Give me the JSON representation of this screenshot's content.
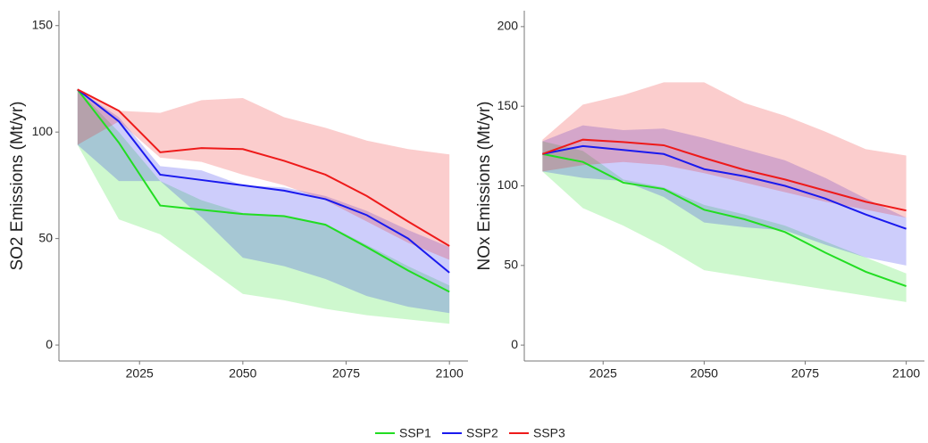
{
  "chart_data": [
    {
      "type": "line",
      "ylabel": "SO2 Emissions (Mt/yr)",
      "x": [
        2010,
        2020,
        2030,
        2040,
        2050,
        2060,
        2070,
        2080,
        2090,
        2100
      ],
      "xlim": [
        2005.5,
        2104.5
      ],
      "xticks": [
        2025,
        2050,
        2075,
        2100
      ],
      "ylim": [
        -7.5,
        157
      ],
      "yticks": [
        0,
        50,
        100,
        150
      ],
      "series": [
        {
          "name": "SSP1",
          "color": "#22dd22",
          "values": [
            120,
            95,
            65.5,
            63.5,
            61.5,
            60.5,
            56.5,
            46,
            35,
            25
          ],
          "lower": [
            94,
            59,
            52,
            38,
            24,
            21,
            17,
            14,
            12,
            10
          ],
          "upper": [
            120,
            100,
            77,
            68,
            62,
            61,
            57,
            47,
            37,
            28
          ]
        },
        {
          "name": "SSP2",
          "color": "#1a1aee",
          "values": [
            120,
            105,
            80,
            77.5,
            75,
            72.5,
            68.5,
            61,
            50,
            34
          ],
          "lower": [
            94,
            77,
            77,
            60,
            41,
            37,
            31,
            23,
            18,
            15
          ],
          "upper": [
            120,
            107,
            84,
            82,
            75,
            74,
            70,
            63,
            54,
            46
          ]
        },
        {
          "name": "SSP3",
          "color": "#ee1a1a",
          "values": [
            120,
            110,
            90.5,
            92.5,
            92,
            86.5,
            80,
            70,
            58,
            46.5
          ],
          "lower": [
            94,
            105,
            88,
            86,
            80,
            75,
            68,
            58,
            48,
            40
          ],
          "upper": [
            120,
            110,
            109,
            115,
            116,
            107,
            102,
            96,
            92,
            89.5
          ]
        }
      ]
    },
    {
      "type": "line",
      "ylabel": "NOx Emissions (Mt/yr)",
      "x": [
        2010,
        2020,
        2030,
        2040,
        2050,
        2060,
        2070,
        2080,
        2090,
        2100
      ],
      "xlim": [
        2005.5,
        2104.5
      ],
      "xticks": [
        2025,
        2050,
        2075,
        2100
      ],
      "ylim": [
        -10,
        210
      ],
      "yticks": [
        0,
        50,
        100,
        150,
        200
      ],
      "series": [
        {
          "color": "#22dd22",
          "values": [
            120,
            115,
            102,
            98,
            85,
            79,
            71,
            58,
            46,
            37
          ],
          "lower": [
            109,
            86,
            75,
            62,
            47,
            43,
            39,
            35,
            31,
            27
          ],
          "upper": [
            128,
            122,
            104,
            99,
            88,
            82,
            75,
            65,
            55,
            45
          ]
        },
        {
          "color": "#1a1aee",
          "values": [
            120,
            125,
            122.5,
            120,
            110.5,
            106,
            100,
            92,
            82,
            73
          ],
          "lower": [
            109,
            105,
            103,
            93,
            77,
            74,
            72,
            63,
            55,
            50
          ],
          "upper": [
            128,
            138,
            135,
            136,
            130,
            123,
            116,
            105,
            92,
            80
          ]
        },
        {
          "color": "#ee1a1a",
          "values": [
            120,
            129,
            127.5,
            125.5,
            117.5,
            110,
            104,
            97,
            90,
            84.5
          ],
          "lower": [
            109,
            113,
            115,
            113,
            108,
            102,
            96,
            90,
            85,
            80
          ],
          "upper": [
            129,
            151,
            157,
            165,
            165,
            152,
            144,
            134,
            123,
            119
          ]
        }
      ]
    }
  ]
}
